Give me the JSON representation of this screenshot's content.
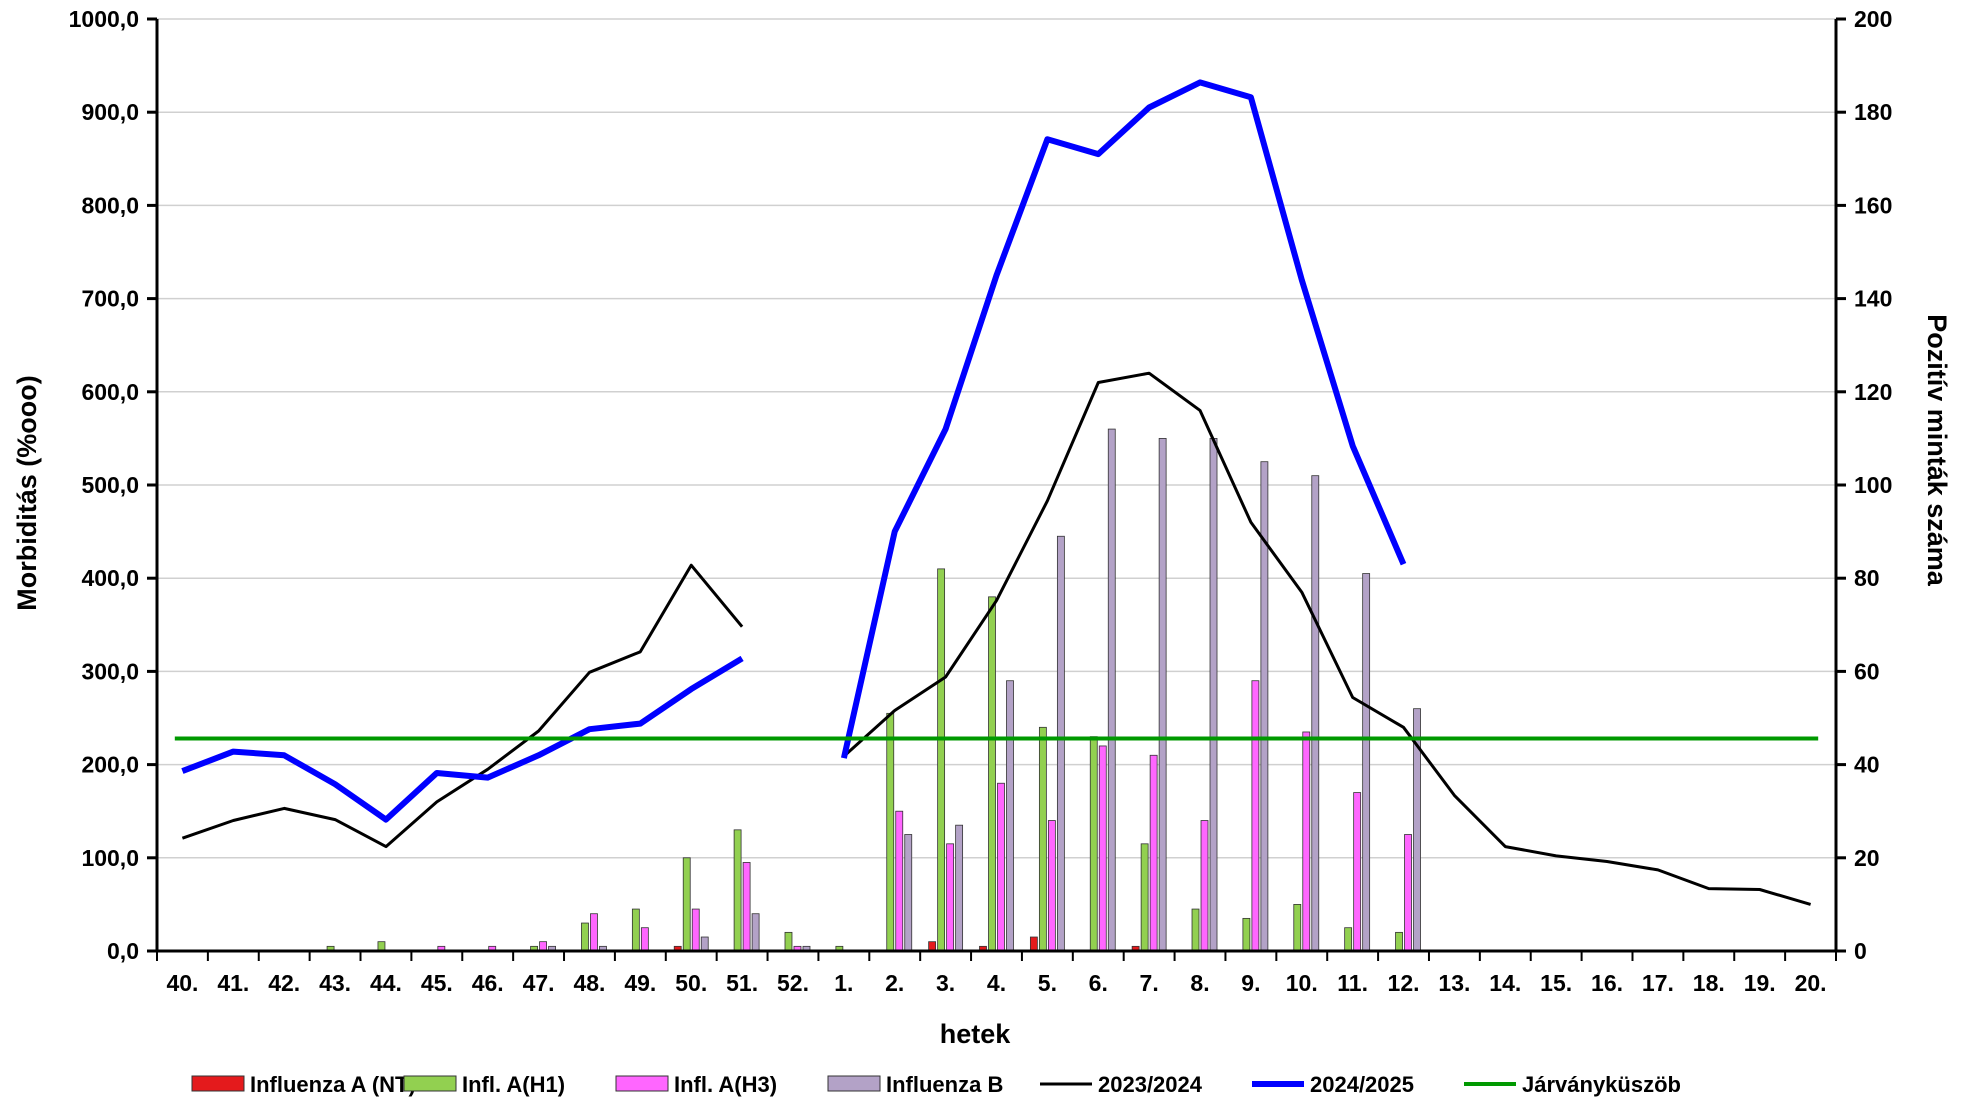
{
  "chart_data": {
    "type": "bar",
    "xlabel": "hetek",
    "ylabel_left": "Morbiditás (%ooo)",
    "ylabel_right": "Pozitív minták száma",
    "ylim_left": [
      0,
      1000
    ],
    "ylim_right": [
      0,
      200
    ],
    "yticks_left": [
      "0,0",
      "100,0",
      "200,0",
      "300,0",
      "400,0",
      "500,0",
      "600,0",
      "700,0",
      "800,0",
      "900,0",
      "1000,0"
    ],
    "yticks_right": [
      "0",
      "20",
      "40",
      "60",
      "80",
      "100",
      "120",
      "140",
      "160",
      "180",
      "200"
    ],
    "grid": "horizontal",
    "legend_position": "bottom",
    "categories": [
      "40.",
      "41.",
      "42.",
      "43.",
      "44.",
      "45.",
      "46.",
      "47.",
      "48.",
      "49.",
      "50.",
      "51.",
      "52.",
      "1.",
      "2.",
      "3.",
      "4.",
      "5.",
      "6.",
      "7.",
      "8.",
      "9.",
      "10.",
      "11.",
      "12.",
      "13.",
      "14.",
      "15.",
      "16.",
      "17.",
      "18.",
      "19.",
      "20."
    ],
    "bar_series": [
      {
        "name": "Influenza A (NT)",
        "color": "#e41a1c",
        "axis": "right",
        "values": [
          0,
          0,
          0,
          0,
          0,
          0,
          0,
          0,
          0,
          0,
          1,
          0,
          0,
          0,
          0,
          2,
          1,
          3,
          0,
          1,
          0,
          0,
          0,
          0,
          0,
          null,
          null,
          null,
          null,
          null,
          null,
          null,
          null
        ]
      },
      {
        "name": "Infl. A(H1)",
        "color": "#92d050",
        "axis": "right",
        "values": [
          0,
          0,
          0,
          1,
          2,
          0,
          0,
          1,
          6,
          9,
          20,
          26,
          4,
          1,
          51,
          82,
          76,
          48,
          46,
          23,
          9,
          7,
          10,
          5,
          4,
          null,
          null,
          null,
          null,
          null,
          null,
          null,
          null
        ]
      },
      {
        "name": "Infl. A(H3)",
        "color": "#ff66ff",
        "axis": "right",
        "values": [
          0,
          0,
          0,
          0,
          0,
          1,
          1,
          2,
          8,
          5,
          9,
          19,
          1,
          0,
          30,
          23,
          36,
          28,
          44,
          42,
          28,
          58,
          47,
          34,
          25,
          null,
          null,
          null,
          null,
          null,
          null,
          null,
          null
        ]
      },
      {
        "name": "Influenza B",
        "color": "#b3a2c7",
        "axis": "right",
        "values": [
          0,
          0,
          0,
          0,
          0,
          0,
          0,
          1,
          1,
          0,
          3,
          8,
          1,
          0,
          25,
          27,
          58,
          89,
          112,
          110,
          110,
          105,
          102,
          81,
          52,
          null,
          null,
          null,
          null,
          null,
          null,
          null,
          null
        ]
      }
    ],
    "line_series": [
      {
        "name": "2023/2024",
        "color": "#000000",
        "width": 3,
        "axis": "left",
        "values": [
          121,
          140,
          153,
          141,
          112,
          160,
          195,
          236,
          299,
          321,
          414,
          348,
          null,
          209,
          258,
          294,
          376,
          483,
          610,
          620,
          580,
          460,
          385,
          272,
          240,
          167,
          112,
          102,
          96,
          87,
          67,
          66,
          50
        ]
      },
      {
        "name": "2024/2025",
        "color": "#0000ff",
        "width": 6,
        "axis": "left",
        "values": [
          193,
          214,
          210,
          179,
          141,
          191,
          186,
          210,
          238,
          244,
          281,
          314,
          null,
          207,
          450,
          560,
          725,
          871,
          855,
          905,
          932,
          916,
          720,
          542,
          415,
          null,
          null,
          null,
          null,
          null,
          null,
          null,
          null
        ]
      },
      {
        "name": "Járványküszöb",
        "color": "#009900",
        "width": 4,
        "axis": "left",
        "values": [
          228,
          228,
          228,
          228,
          228,
          228,
          228,
          228,
          228,
          228,
          228,
          228,
          228,
          228,
          228,
          228,
          228,
          228,
          228,
          228,
          228,
          228,
          228,
          228,
          228,
          228,
          228,
          228,
          228,
          228,
          228,
          228,
          228
        ]
      }
    ],
    "legend": [
      "Influenza A (NT)",
      "Infl. A(H1)",
      "Infl. A(H3)",
      "Influenza B",
      "2023/2024",
      "2024/2025",
      "Járványküszöb"
    ]
  }
}
